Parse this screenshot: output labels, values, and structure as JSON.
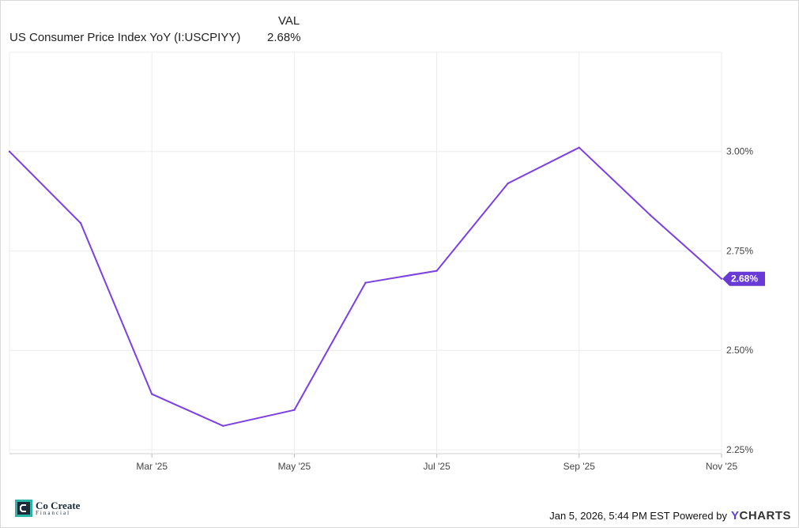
{
  "legend": {
    "column_header": "VAL",
    "series_name": "US Consumer Price Index YoY (I:USCPIYY)",
    "series_value": "2.68%"
  },
  "footer": {
    "brand_title": "Co Create",
    "brand_sub": "Financial",
    "timestamp": "Jan 5, 2026, 5:44 PM EST",
    "powered_by": "Powered by",
    "ycharts_y": "Y",
    "ycharts_rest": "CHARTS"
  },
  "colors": {
    "line": "#7b3fe4",
    "grid": "#ececec",
    "end_label": "#6a3ad6"
  },
  "chart_data": {
    "type": "line",
    "title": "",
    "xlabel": "",
    "ylabel": "",
    "x": [
      "2025-01",
      "2025-02",
      "2025-03",
      "2025-04",
      "2025-05",
      "2025-06",
      "2025-07",
      "2025-08",
      "2025-09",
      "2025-10",
      "2025-11"
    ],
    "series": [
      {
        "name": "US Consumer Price Index YoY (I:USCPIYY)",
        "values": [
          3.0,
          2.82,
          2.39,
          2.31,
          2.35,
          2.67,
          2.7,
          2.92,
          3.01,
          2.84,
          2.68
        ]
      }
    ],
    "ylim": [
      2.24,
      3.25
    ],
    "y_ticks": [
      2.25,
      2.5,
      2.75,
      3.0
    ],
    "y_tick_labels": [
      "2.25%",
      "2.50%",
      "2.75%",
      "3.00%"
    ],
    "x_ticks": [
      "2025-03",
      "2025-05",
      "2025-07",
      "2025-09",
      "2025-11"
    ],
    "x_tick_labels": [
      "Mar '25",
      "May '25",
      "Jul '25",
      "Sep '25",
      "Nov '25"
    ],
    "end_label": "2.68%",
    "grid": true,
    "y_axis_position": "right",
    "legend_position": "top-left"
  }
}
